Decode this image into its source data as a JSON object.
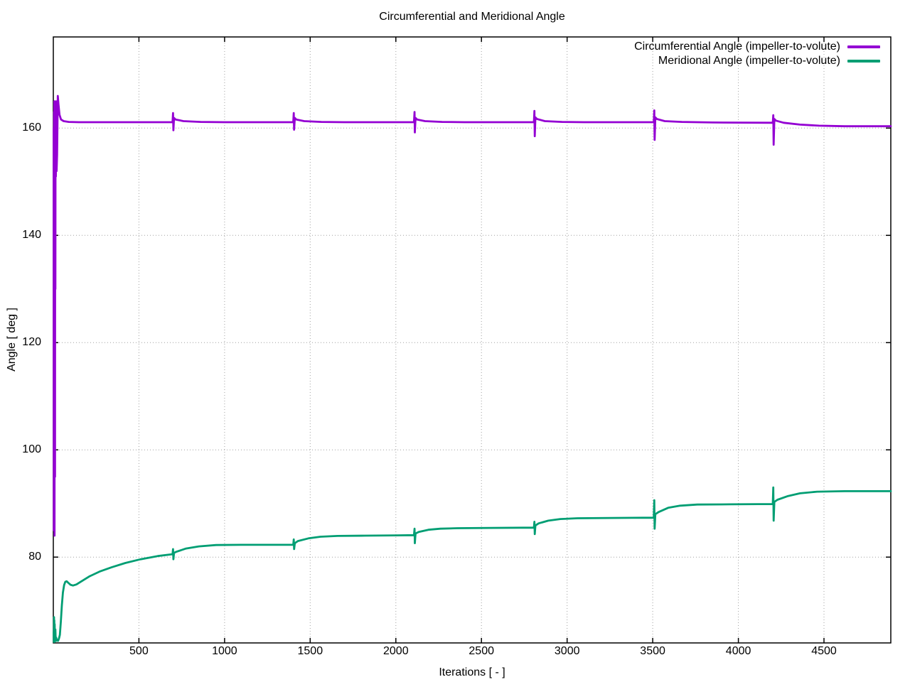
{
  "chart_data": {
    "type": "line",
    "title": "Circumferential and Meridional Angle",
    "xlabel": "Iterations [ - ]",
    "ylabel": "Angle [ deg ]",
    "xlim": [
      0,
      4890
    ],
    "ylim": [
      64,
      177
    ],
    "x_ticks": [
      500,
      1000,
      1500,
      2000,
      2500,
      3000,
      3500,
      4000,
      4500
    ],
    "y_ticks": [
      80,
      100,
      120,
      140,
      160
    ],
    "grid": "dotted",
    "legend_position": "top-right-inside",
    "background_color": "#ffffff",
    "axis_color": "#000000",
    "grid_color": "#a0a0a0",
    "series": [
      {
        "name": "Circumferential Angle (impeller-to-volute)",
        "color": "#9400d3",
        "points": [
          [
            2,
            160
          ],
          [
            3,
            85
          ],
          [
            4,
            163
          ],
          [
            5,
            88
          ],
          [
            6,
            165
          ],
          [
            7,
            84
          ],
          [
            8,
            150
          ],
          [
            9,
            165
          ],
          [
            10,
            95
          ],
          [
            11,
            158
          ],
          [
            12,
            130
          ],
          [
            13,
            160
          ],
          [
            15,
            151
          ],
          [
            17,
            165
          ],
          [
            19,
            152
          ],
          [
            22,
            155
          ],
          [
            26,
            166
          ],
          [
            30,
            164.5
          ],
          [
            36,
            162.5
          ],
          [
            45,
            161.6
          ],
          [
            60,
            161.3
          ],
          [
            90,
            161.15
          ],
          [
            150,
            161.1
          ],
          [
            400,
            161.1
          ],
          [
            696,
            161.1
          ],
          [
            699,
            162.8
          ],
          [
            701,
            159.6
          ],
          [
            705,
            161.9
          ],
          [
            714,
            161.6
          ],
          [
            760,
            161.3
          ],
          [
            860,
            161.15
          ],
          [
            1000,
            161.1
          ],
          [
            1401,
            161.1
          ],
          [
            1404,
            162.8
          ],
          [
            1406,
            159.7
          ],
          [
            1410,
            161.9
          ],
          [
            1419,
            161.6
          ],
          [
            1465,
            161.3
          ],
          [
            1565,
            161.15
          ],
          [
            1700,
            161.1
          ],
          [
            2106,
            161.1
          ],
          [
            2109,
            163.0
          ],
          [
            2111,
            159.2
          ],
          [
            2115,
            161.9
          ],
          [
            2124,
            161.6
          ],
          [
            2170,
            161.3
          ],
          [
            2270,
            161.15
          ],
          [
            2400,
            161.1
          ],
          [
            2806,
            161.1
          ],
          [
            2809,
            163.2
          ],
          [
            2811,
            158.5
          ],
          [
            2815,
            162.0
          ],
          [
            2824,
            161.7
          ],
          [
            2870,
            161.3
          ],
          [
            2970,
            161.15
          ],
          [
            3100,
            161.1
          ],
          [
            3506,
            161.1
          ],
          [
            3509,
            163.3
          ],
          [
            3511,
            157.8
          ],
          [
            3515,
            162.0
          ],
          [
            3524,
            161.7
          ],
          [
            3570,
            161.3
          ],
          [
            3670,
            161.15
          ],
          [
            3850,
            161.05
          ],
          [
            4201,
            161.0
          ],
          [
            4204,
            162.4
          ],
          [
            4206,
            156.9
          ],
          [
            4210,
            161.7
          ],
          [
            4219,
            161.4
          ],
          [
            4265,
            161.0
          ],
          [
            4360,
            160.65
          ],
          [
            4470,
            160.45
          ],
          [
            4620,
            160.35
          ],
          [
            4890,
            160.35
          ]
        ]
      },
      {
        "name": "Meridional Angle (impeller-to-volute)",
        "color": "#009e73",
        "points": [
          [
            2,
            66
          ],
          [
            3,
            64.2
          ],
          [
            4,
            68.8
          ],
          [
            5,
            64.3
          ],
          [
            6,
            68.2
          ],
          [
            7,
            64.2
          ],
          [
            8,
            67.5
          ],
          [
            10,
            64.3
          ],
          [
            12,
            66.5
          ],
          [
            14,
            64.4
          ],
          [
            17,
            65
          ],
          [
            20,
            64.4
          ],
          [
            24,
            64.6
          ],
          [
            28,
            64.4
          ],
          [
            33,
            64.8
          ],
          [
            38,
            65.5
          ],
          [
            44,
            68
          ],
          [
            50,
            71
          ],
          [
            56,
            73.4
          ],
          [
            63,
            74.8
          ],
          [
            70,
            75.4
          ],
          [
            78,
            75.5
          ],
          [
            88,
            75.2
          ],
          [
            100,
            74.85
          ],
          [
            115,
            74.7
          ],
          [
            135,
            74.9
          ],
          [
            165,
            75.5
          ],
          [
            210,
            76.4
          ],
          [
            270,
            77.3
          ],
          [
            340,
            78.1
          ],
          [
            420,
            78.9
          ],
          [
            510,
            79.6
          ],
          [
            610,
            80.2
          ],
          [
            696,
            80.55
          ],
          [
            699,
            81.5
          ],
          [
            701,
            79.6
          ],
          [
            705,
            80.8
          ],
          [
            718,
            81.0
          ],
          [
            775,
            81.6
          ],
          [
            850,
            82.0
          ],
          [
            950,
            82.25
          ],
          [
            1100,
            82.3
          ],
          [
            1401,
            82.3
          ],
          [
            1404,
            83.3
          ],
          [
            1406,
            81.5
          ],
          [
            1410,
            82.6
          ],
          [
            1428,
            83.0
          ],
          [
            1490,
            83.5
          ],
          [
            1560,
            83.8
          ],
          [
            1660,
            83.95
          ],
          [
            1820,
            84.0
          ],
          [
            2000,
            84.05
          ],
          [
            2106,
            84.1
          ],
          [
            2109,
            85.3
          ],
          [
            2111,
            82.6
          ],
          [
            2115,
            84.4
          ],
          [
            2134,
            84.7
          ],
          [
            2190,
            85.1
          ],
          [
            2260,
            85.3
          ],
          [
            2360,
            85.4
          ],
          [
            2550,
            85.45
          ],
          [
            2806,
            85.5
          ],
          [
            2809,
            86.6
          ],
          [
            2811,
            84.3
          ],
          [
            2815,
            85.9
          ],
          [
            2834,
            86.3
          ],
          [
            2890,
            86.8
          ],
          [
            2960,
            87.1
          ],
          [
            3060,
            87.25
          ],
          [
            3250,
            87.3
          ],
          [
            3506,
            87.35
          ],
          [
            3509,
            90.6
          ],
          [
            3511,
            85.3
          ],
          [
            3515,
            88.0
          ],
          [
            3534,
            88.4
          ],
          [
            3590,
            89.2
          ],
          [
            3660,
            89.6
          ],
          [
            3760,
            89.8
          ],
          [
            3950,
            89.85
          ],
          [
            4201,
            89.9
          ],
          [
            4204,
            93.0
          ],
          [
            4206,
            86.8
          ],
          [
            4210,
            90.3
          ],
          [
            4228,
            90.7
          ],
          [
            4290,
            91.4
          ],
          [
            4360,
            91.9
          ],
          [
            4460,
            92.2
          ],
          [
            4620,
            92.3
          ],
          [
            4890,
            92.3
          ]
        ]
      }
    ]
  }
}
